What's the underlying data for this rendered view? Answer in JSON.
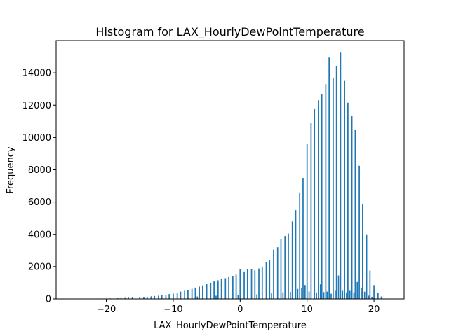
{
  "chart_data": {
    "type": "bar",
    "title": "Histogram for LAX_HourlyDewPointTemperature",
    "xlabel": "LAX_HourlyDewPointTemperature",
    "ylabel": "Frequency",
    "xlim": [
      -27.5,
      24.5
    ],
    "ylim": [
      0,
      16000
    ],
    "xticks": [
      -20,
      -10,
      0,
      10,
      20
    ],
    "yticks": [
      0,
      2000,
      4000,
      6000,
      8000,
      10000,
      12000,
      14000
    ],
    "grid": false,
    "bar_color": "#1f77b4",
    "bin_width": 0.18,
    "series": [
      {
        "values": [
          {
            "x": -20.0,
            "y": 20
          },
          {
            "x": -19.4,
            "y": 30
          },
          {
            "x": -18.3,
            "y": 40
          },
          {
            "x": -17.8,
            "y": 50
          },
          {
            "x": -17.2,
            "y": 60
          },
          {
            "x": -16.7,
            "y": 80
          },
          {
            "x": -16.1,
            "y": 100
          },
          {
            "x": -15.0,
            "y": 110
          },
          {
            "x": -14.4,
            "y": 120
          },
          {
            "x": -13.9,
            "y": 140
          },
          {
            "x": -13.3,
            "y": 160
          },
          {
            "x": -12.8,
            "y": 180
          },
          {
            "x": -12.2,
            "y": 200
          },
          {
            "x": -11.7,
            "y": 220
          },
          {
            "x": -11.1,
            "y": 260
          },
          {
            "x": -10.6,
            "y": 300
          },
          {
            "x": -10.0,
            "y": 330
          },
          {
            "x": -9.4,
            "y": 380
          },
          {
            "x": -8.9,
            "y": 450
          },
          {
            "x": -8.3,
            "y": 500
          },
          {
            "x": -7.8,
            "y": 560
          },
          {
            "x": -7.2,
            "y": 620
          },
          {
            "x": -6.7,
            "y": 700
          },
          {
            "x": -6.1,
            "y": 760
          },
          {
            "x": -5.6,
            "y": 840
          },
          {
            "x": -5.0,
            "y": 910
          },
          {
            "x": -4.4,
            "y": 1000
          },
          {
            "x": -3.9,
            "y": 1080
          },
          {
            "x": -3.3,
            "y": 1150
          },
          {
            "x": -2.8,
            "y": 1220
          },
          {
            "x": -2.2,
            "y": 1280
          },
          {
            "x": -1.7,
            "y": 1350
          },
          {
            "x": -1.1,
            "y": 1420
          },
          {
            "x": -0.6,
            "y": 1500
          },
          {
            "x": 0.0,
            "y": 1820
          },
          {
            "x": 0.6,
            "y": 1700
          },
          {
            "x": 1.1,
            "y": 1860
          },
          {
            "x": 1.7,
            "y": 1820
          },
          {
            "x": 2.2,
            "y": 1760
          },
          {
            "x": 2.8,
            "y": 1880
          },
          {
            "x": 3.3,
            "y": 2000
          },
          {
            "x": 3.9,
            "y": 2300
          },
          {
            "x": 4.4,
            "y": 2400
          },
          {
            "x": 5.0,
            "y": 3050
          },
          {
            "x": 5.6,
            "y": 3200
          },
          {
            "x": 6.1,
            "y": 3700
          },
          {
            "x": 6.7,
            "y": 3900
          },
          {
            "x": 7.2,
            "y": 4050
          },
          {
            "x": 7.8,
            "y": 4800
          },
          {
            "x": 8.3,
            "y": 5500
          },
          {
            "x": 8.9,
            "y": 6600
          },
          {
            "x": 9.4,
            "y": 7500
          },
          {
            "x": 10.0,
            "y": 9600
          },
          {
            "x": 10.6,
            "y": 10900
          },
          {
            "x": 11.1,
            "y": 11800
          },
          {
            "x": 11.7,
            "y": 12300
          },
          {
            "x": 12.2,
            "y": 12700
          },
          {
            "x": 12.8,
            "y": 13300
          },
          {
            "x": 13.3,
            "y": 14950
          },
          {
            "x": 13.9,
            "y": 13700
          },
          {
            "x": 14.4,
            "y": 14400
          },
          {
            "x": 15.0,
            "y": 15250
          },
          {
            "x": 15.6,
            "y": 13500
          },
          {
            "x": 16.1,
            "y": 12150
          },
          {
            "x": 16.7,
            "y": 11350
          },
          {
            "x": 17.2,
            "y": 10450
          },
          {
            "x": 17.8,
            "y": 8250
          },
          {
            "x": 18.3,
            "y": 5850
          },
          {
            "x": 18.9,
            "y": 4000
          },
          {
            "x": 19.4,
            "y": 1750
          },
          {
            "x": 20.0,
            "y": 850
          },
          {
            "x": 20.6,
            "y": 350
          },
          {
            "x": 21.1,
            "y": 150
          },
          {
            "x": -22.0,
            "y": 20
          },
          {
            "x": -21.0,
            "y": 25
          },
          {
            "x": -6.4,
            "y": 150
          },
          {
            "x": -3.6,
            "y": 200
          },
          {
            "x": -0.3,
            "y": 230
          },
          {
            "x": 2.5,
            "y": 280
          },
          {
            "x": 4.7,
            "y": 340
          },
          {
            "x": 6.4,
            "y": 400
          },
          {
            "x": 7.5,
            "y": 430
          },
          {
            "x": 8.6,
            "y": 620
          },
          {
            "x": 9.2,
            "y": 700
          },
          {
            "x": 9.7,
            "y": 860
          },
          {
            "x": 10.3,
            "y": 450
          },
          {
            "x": 11.4,
            "y": 400
          },
          {
            "x": 12.0,
            "y": 900
          },
          {
            "x": 12.5,
            "y": 420
          },
          {
            "x": 13.0,
            "y": 450
          },
          {
            "x": 13.6,
            "y": 320
          },
          {
            "x": 14.2,
            "y": 500
          },
          {
            "x": 14.7,
            "y": 1450
          },
          {
            "x": 15.3,
            "y": 500
          },
          {
            "x": 15.9,
            "y": 400
          },
          {
            "x": 16.4,
            "y": 500
          },
          {
            "x": 17.0,
            "y": 400
          },
          {
            "x": 17.5,
            "y": 1050
          },
          {
            "x": 18.1,
            "y": 700
          },
          {
            "x": 18.6,
            "y": 450
          },
          {
            "x": 19.2,
            "y": 200
          },
          {
            "x": 19.7,
            "y": 100
          }
        ]
      }
    ]
  }
}
